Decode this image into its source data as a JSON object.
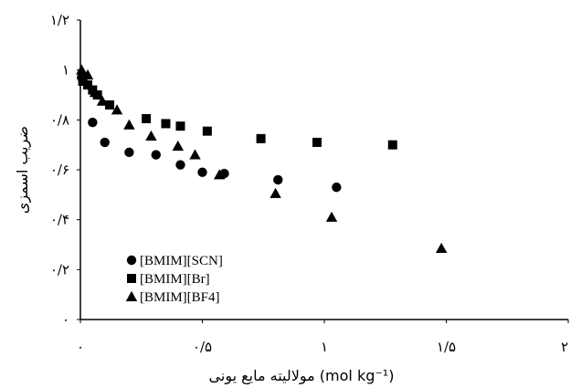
{
  "chart_data": {
    "type": "scatter",
    "title": "",
    "xlabel": "مولالیته مایع یونی (mol kg⁻¹)",
    "ylabel": "ضریب اسمزی",
    "xlim": [
      0,
      2
    ],
    "ylim": [
      0,
      1.2
    ],
    "grid": false,
    "legend_position": "bottom-left",
    "x_ticks": [
      {
        "value": 0,
        "label": "۰"
      },
      {
        "value": 0.5,
        "label": "۰/۵"
      },
      {
        "value": 1,
        "label": "۱"
      },
      {
        "value": 1.5,
        "label": "۱/۵"
      },
      {
        "value": 2,
        "label": "۲"
      }
    ],
    "y_ticks": [
      {
        "value": 0,
        "label": "۰"
      },
      {
        "value": 0.2,
        "label": "۰/۲"
      },
      {
        "value": 0.4,
        "label": "۰/۴"
      },
      {
        "value": 0.6,
        "label": "۰/۶"
      },
      {
        "value": 0.8,
        "label": "۰/۸"
      },
      {
        "value": 1,
        "label": "۱"
      },
      {
        "value": 1.2,
        "label": "۱/۲"
      }
    ],
    "series": [
      {
        "name": "[BMIM][SCN]",
        "marker": "circle",
        "points": [
          {
            "x": 0.005,
            "y": 0.97
          },
          {
            "x": 0.05,
            "y": 0.79
          },
          {
            "x": 0.1,
            "y": 0.71
          },
          {
            "x": 0.2,
            "y": 0.67
          },
          {
            "x": 0.31,
            "y": 0.66
          },
          {
            "x": 0.41,
            "y": 0.62
          },
          {
            "x": 0.5,
            "y": 0.59
          },
          {
            "x": 0.59,
            "y": 0.585
          },
          {
            "x": 0.81,
            "y": 0.56
          },
          {
            "x": 1.05,
            "y": 0.53
          }
        ]
      },
      {
        "name": "[BMIM][Br]",
        "marker": "square",
        "points": [
          {
            "x": 0.01,
            "y": 0.955
          },
          {
            "x": 0.03,
            "y": 0.94
          },
          {
            "x": 0.05,
            "y": 0.92
          },
          {
            "x": 0.07,
            "y": 0.9
          },
          {
            "x": 0.12,
            "y": 0.86
          },
          {
            "x": 0.27,
            "y": 0.805
          },
          {
            "x": 0.35,
            "y": 0.785
          },
          {
            "x": 0.41,
            "y": 0.775
          },
          {
            "x": 0.52,
            "y": 0.755
          },
          {
            "x": 0.74,
            "y": 0.725
          },
          {
            "x": 0.97,
            "y": 0.71
          },
          {
            "x": 1.28,
            "y": 0.7
          }
        ]
      },
      {
        "name": "[BMIM][BF4]",
        "marker": "triangle",
        "points": [
          {
            "x": 0.005,
            "y": 1.0
          },
          {
            "x": 0.03,
            "y": 0.98
          },
          {
            "x": 0.06,
            "y": 0.91
          },
          {
            "x": 0.09,
            "y": 0.875
          },
          {
            "x": 0.15,
            "y": 0.84
          },
          {
            "x": 0.2,
            "y": 0.78
          },
          {
            "x": 0.29,
            "y": 0.735
          },
          {
            "x": 0.4,
            "y": 0.695
          },
          {
            "x": 0.47,
            "y": 0.66
          },
          {
            "x": 0.57,
            "y": 0.58
          },
          {
            "x": 0.8,
            "y": 0.505
          },
          {
            "x": 1.03,
            "y": 0.41
          },
          {
            "x": 1.48,
            "y": 0.285
          }
        ]
      }
    ]
  }
}
